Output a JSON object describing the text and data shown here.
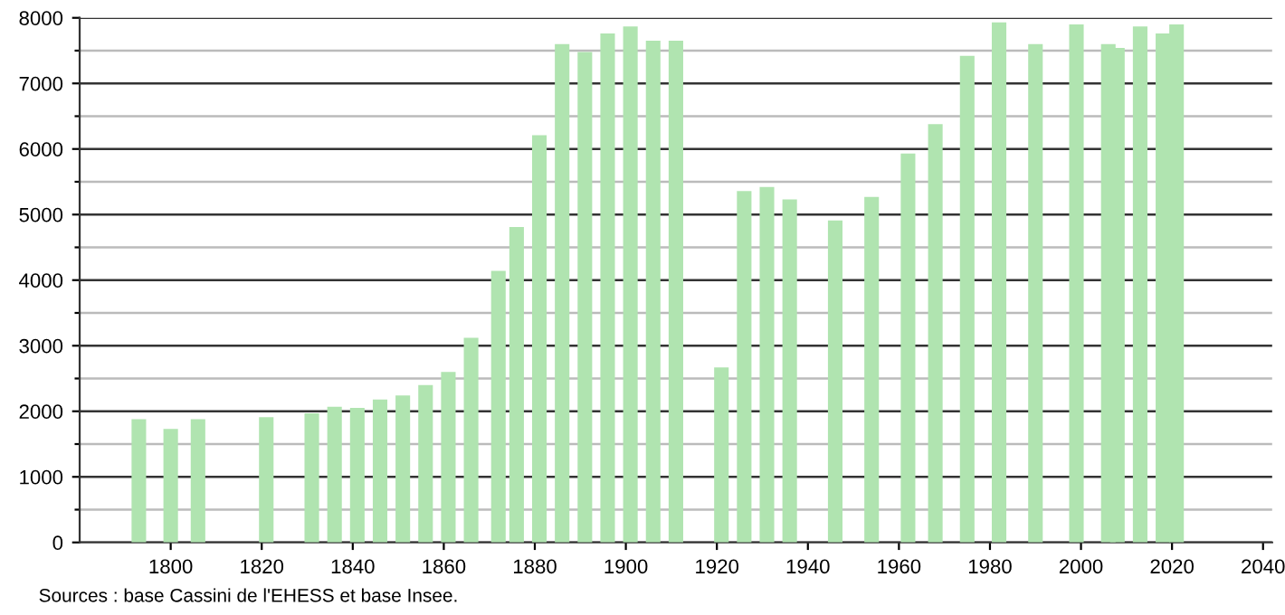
{
  "chart_data": {
    "type": "bar",
    "x": [
      1793,
      1800,
      1806,
      1821,
      1831,
      1836,
      1841,
      1846,
      1851,
      1856,
      1861,
      1866,
      1872,
      1876,
      1881,
      1886,
      1891,
      1896,
      1901,
      1906,
      1911,
      1921,
      1926,
      1931,
      1936,
      1946,
      1954,
      1962,
      1968,
      1975,
      1982,
      1990,
      1999,
      2006,
      2008,
      2013,
      2018,
      2021
    ],
    "values": [
      1880,
      1730,
      1880,
      1910,
      1970,
      2070,
      2050,
      2180,
      2240,
      2400,
      2600,
      3120,
      4140,
      4810,
      6210,
      7600,
      7480,
      7760,
      7870,
      7650,
      7650,
      2670,
      5360,
      5420,
      5230,
      4910,
      5270,
      5930,
      6380,
      7420,
      7930,
      7600,
      7900,
      7600,
      7540,
      7870,
      7760,
      7900
    ],
    "color": "#b0e4b0",
    "xlim": [
      1780,
      2042
    ],
    "xticks": [
      1800,
      1820,
      1840,
      1860,
      1880,
      1900,
      1920,
      1940,
      1960,
      1980,
      2000,
      2020,
      2040
    ],
    "ylim": [
      0,
      8000
    ],
    "yticks": [
      0,
      {
        "value": 500,
        "label": null
      },
      1000,
      {
        "value": 1500,
        "label": null
      },
      2000,
      {
        "value": 2500,
        "label": null
      },
      3000,
      {
        "value": 3500,
        "label": null
      },
      4000,
      {
        "value": 4500,
        "label": null
      },
      5000,
      {
        "value": 5500,
        "label": null
      },
      6000,
      {
        "value": 6500,
        "label": null
      },
      7000,
      {
        "value": 7500,
        "label": null
      },
      8000
    ],
    "grid": "y",
    "annotations": [
      "Sources : base Cassini de l'EHESS et base Insee."
    ]
  }
}
